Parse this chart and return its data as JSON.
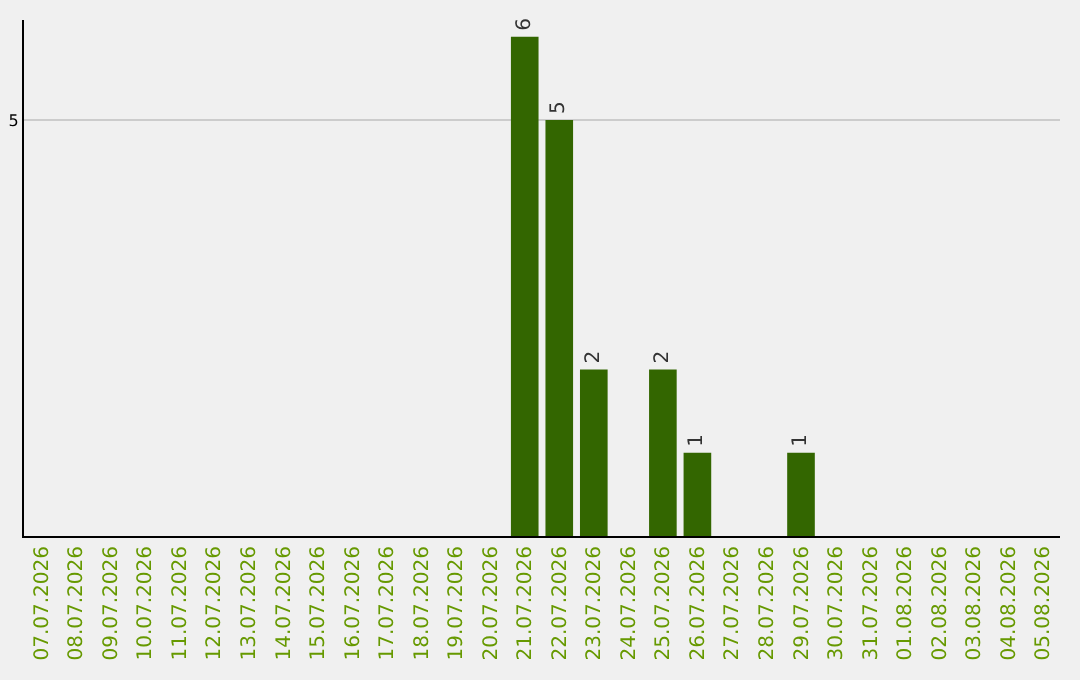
{
  "chart_data": {
    "type": "bar",
    "categories": [
      "07.07.2026",
      "08.07.2026",
      "09.07.2026",
      "10.07.2026",
      "11.07.2026",
      "12.07.2026",
      "13.07.2026",
      "14.07.2026",
      "15.07.2026",
      "16.07.2026",
      "17.07.2026",
      "18.07.2026",
      "19.07.2026",
      "20.07.2026",
      "21.07.2026",
      "22.07.2026",
      "23.07.2026",
      "24.07.2026",
      "25.07.2026",
      "26.07.2026",
      "27.07.2026",
      "28.07.2026",
      "29.07.2026",
      "30.07.2026",
      "31.07.2026",
      "01.08.2026",
      "02.08.2026",
      "03.08.2026",
      "04.08.2026",
      "05.08.2026"
    ],
    "values": [
      null,
      null,
      null,
      null,
      null,
      null,
      null,
      null,
      null,
      null,
      null,
      null,
      null,
      null,
      6,
      5,
      2,
      null,
      2,
      1,
      null,
      null,
      1,
      null,
      null,
      null,
      null,
      null,
      null,
      null
    ],
    "data_labels": true,
    "color": "#336600",
    "ylim": [
      0,
      6.2
    ],
    "yticks": [
      5
    ],
    "grid": "y"
  }
}
